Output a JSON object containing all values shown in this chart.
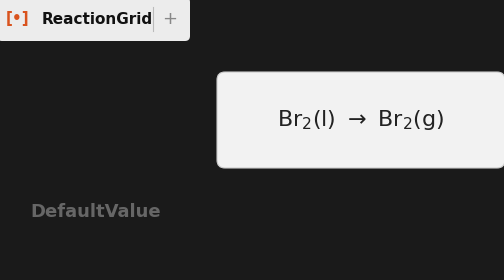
{
  "bg_color": "#1a1a1a",
  "header_bg": "#ececec",
  "header_text": "ReactionGrid",
  "header_bracket_color": "#d9531e",
  "reaction_box_bg": "#f2f2f2",
  "reaction_box_edge": "#cccccc",
  "default_value_text": "DefaultValue",
  "default_value_color": "#666666",
  "fig_width": 5.04,
  "fig_height": 2.8,
  "dpi": 100
}
